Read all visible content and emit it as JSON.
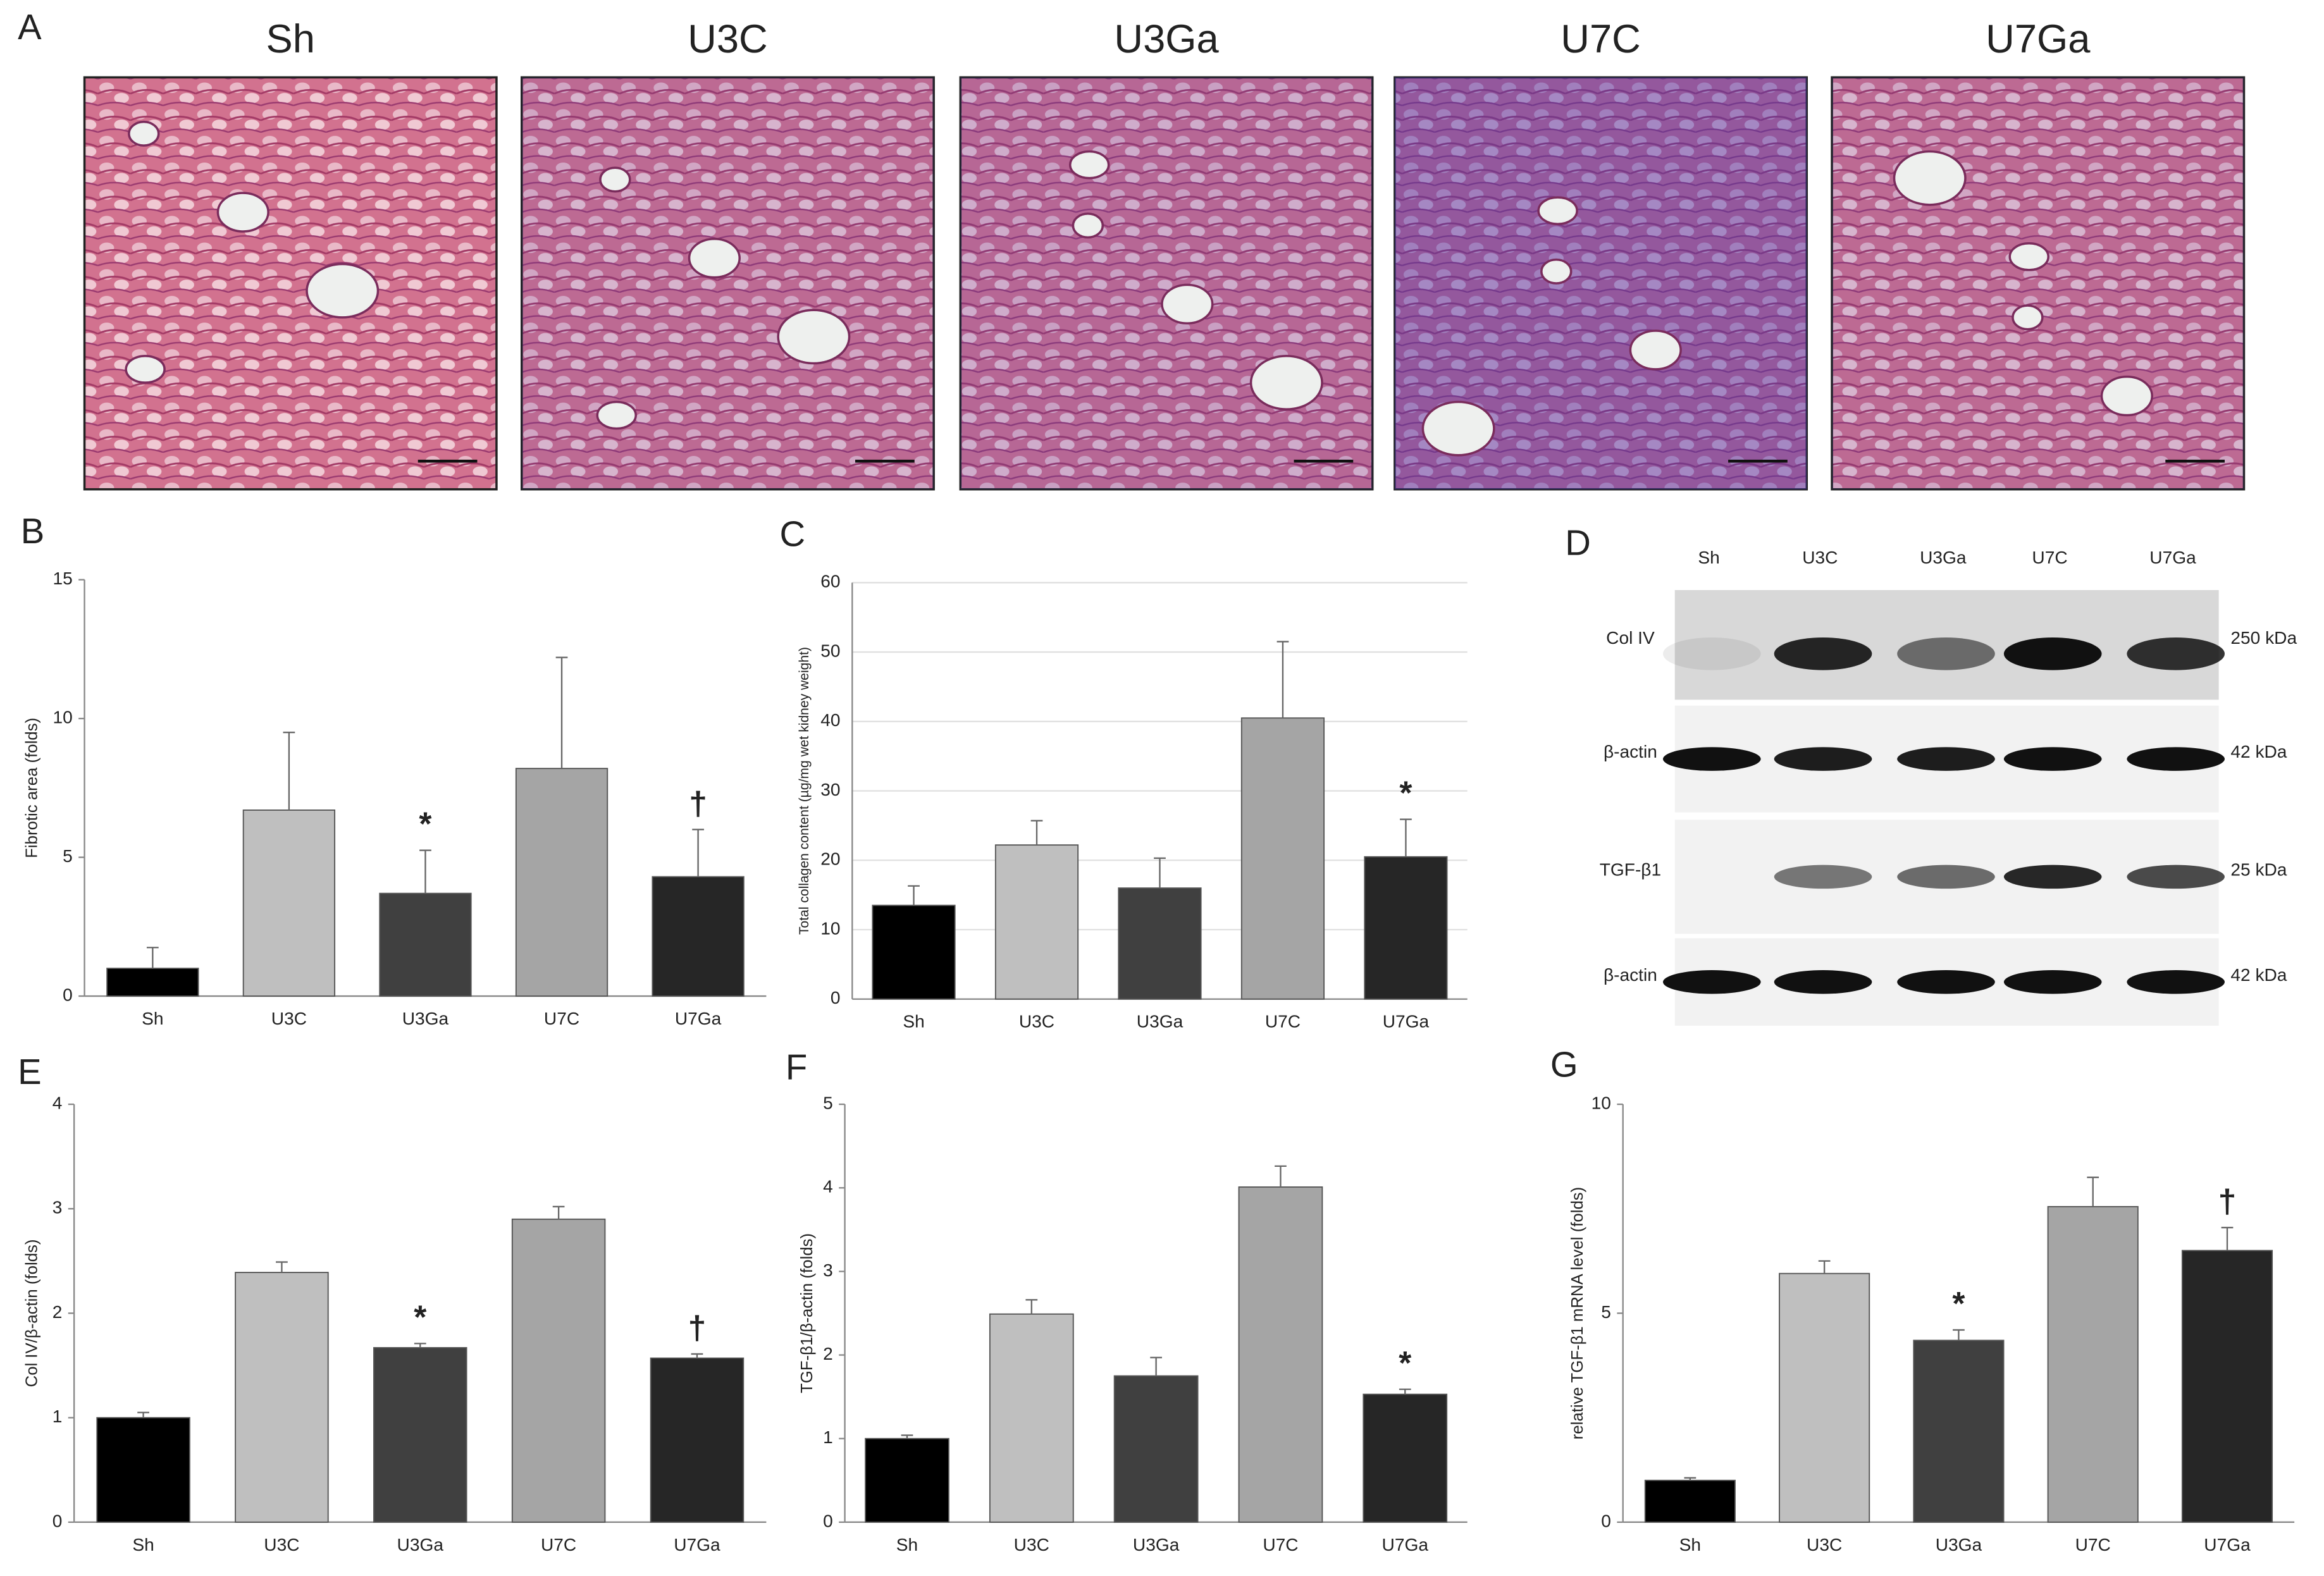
{
  "panel_a": {
    "label": "A",
    "images": [
      "Sh",
      "U3C",
      "U3Ga",
      "U7C",
      "U7Ga"
    ]
  },
  "panel_d": {
    "label": "D",
    "lanes": [
      "Sh",
      "U3C",
      "U3Ga",
      "U7C",
      "U7Ga"
    ],
    "rows": [
      {
        "name": "Col IV",
        "size": "250 kDa"
      },
      {
        "name": "β-actin",
        "size": "42 kDa"
      },
      {
        "name": "TGF-β1",
        "size": "25 kDa"
      },
      {
        "name": "β-actin",
        "size": "42 kDa"
      }
    ]
  },
  "chart_data": [
    {
      "label": "B",
      "type": "bar",
      "ylabel": "Fibrotic area (folds)",
      "categories": [
        "Sh",
        "U3C",
        "U3Ga",
        "U7C",
        "U7Ga"
      ],
      "values": [
        1.0,
        6.7,
        3.7,
        8.2,
        4.3
      ],
      "errors": [
        0.75,
        2.8,
        1.55,
        4.0,
        1.7
      ],
      "colors": [
        "#000000",
        "#bfbfbf",
        "#404040",
        "#a5a5a5",
        "#262626"
      ],
      "annotations": [
        null,
        null,
        "*",
        null,
        "†"
      ],
      "ylim": [
        0,
        15
      ],
      "yticks": [
        0,
        5,
        10,
        15
      ],
      "grid": false
    },
    {
      "label": "C",
      "type": "bar",
      "ylabel": "Total collagen content (µg/mg wet kidney weight)",
      "categories": [
        "Sh",
        "U3C",
        "U3Ga",
        "U7C",
        "U7Ga"
      ],
      "values": [
        13.5,
        22.2,
        16.0,
        40.5,
        20.5
      ],
      "errors": [
        2.8,
        3.5,
        4.3,
        11.0,
        5.4
      ],
      "colors": [
        "#000000",
        "#bfbfbf",
        "#404040",
        "#a5a5a5",
        "#262626"
      ],
      "annotations": [
        null,
        null,
        null,
        null,
        "*"
      ],
      "ylim": [
        0,
        60
      ],
      "yticks": [
        0,
        10,
        20,
        30,
        40,
        50,
        60
      ],
      "grid": true
    },
    {
      "label": "E",
      "type": "bar",
      "ylabel": "Col IV/β-actin (folds)",
      "categories": [
        "Sh",
        "U3C",
        "U3Ga",
        "U7C",
        "U7Ga"
      ],
      "values": [
        1.0,
        2.39,
        1.67,
        2.9,
        1.57
      ],
      "errors": [
        0.05,
        0.1,
        0.04,
        0.12,
        0.04
      ],
      "colors": [
        "#000000",
        "#bfbfbf",
        "#404040",
        "#a5a5a5",
        "#262626"
      ],
      "annotations": [
        null,
        null,
        "*",
        null,
        "†"
      ],
      "ylim": [
        0,
        4
      ],
      "yticks": [
        0,
        1,
        2,
        3,
        4
      ],
      "grid": false
    },
    {
      "label": "F",
      "type": "bar",
      "ylabel": "TGF-β1/β-actin (folds)",
      "categories": [
        "Sh",
        "U3C",
        "U3Ga",
        "U7C",
        "U7Ga"
      ],
      "values": [
        1.0,
        2.49,
        1.75,
        4.01,
        1.53
      ],
      "errors": [
        0.04,
        0.17,
        0.22,
        0.25,
        0.06
      ],
      "colors": [
        "#000000",
        "#bfbfbf",
        "#404040",
        "#a5a5a5",
        "#262626"
      ],
      "annotations": [
        null,
        null,
        null,
        null,
        "*"
      ],
      "ylim": [
        0,
        5
      ],
      "yticks": [
        0,
        1,
        2,
        3,
        4,
        5
      ],
      "grid": false
    },
    {
      "label": "G",
      "type": "bar",
      "ylabel": "relative TGF-β1 mRNA level (folds)",
      "categories": [
        "Sh",
        "U3C",
        "U3Ga",
        "U7C",
        "U7Ga"
      ],
      "values": [
        1.0,
        5.95,
        4.35,
        7.55,
        6.5
      ],
      "errors": [
        0.06,
        0.3,
        0.25,
        0.7,
        0.55
      ],
      "colors": [
        "#000000",
        "#bfbfbf",
        "#404040",
        "#a5a5a5",
        "#262626"
      ],
      "annotations": [
        null,
        null,
        "*",
        null,
        "†"
      ],
      "ylim": [
        0,
        10
      ],
      "yticks": [
        0,
        5,
        10
      ],
      "grid": false
    }
  ]
}
